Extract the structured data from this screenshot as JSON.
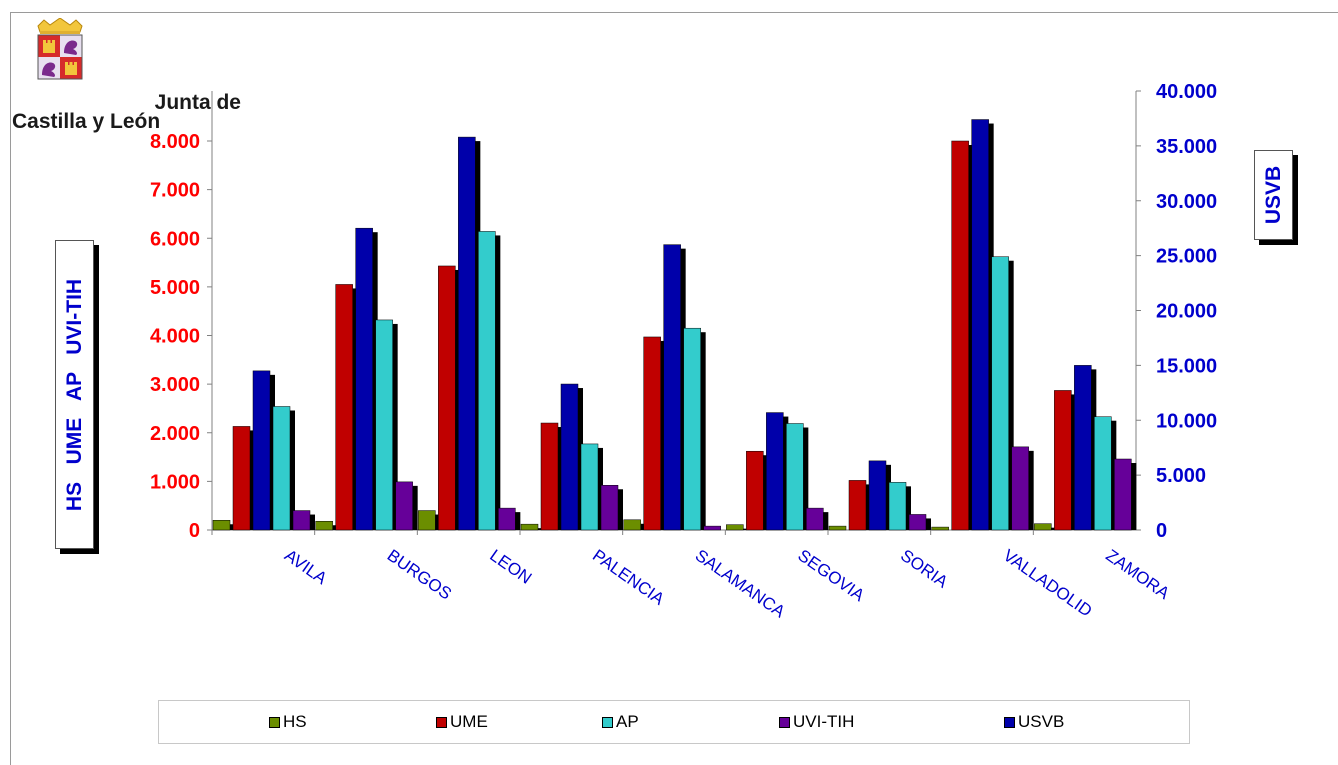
{
  "logo": {
    "line1": "Junta de",
    "line2": "Castilla y León",
    "crest_name": "castilla-y-leon-crest"
  },
  "axes": {
    "left_label": "HS   UME   AP   UVI-TIH",
    "right_label": "USVB",
    "left_color": "#ff0000",
    "right_color": "#0000cc",
    "category_color": "#0000cc"
  },
  "legend": {
    "items": [
      {
        "label": "HS",
        "color": "#6b8e00"
      },
      {
        "label": "UME",
        "color": "#c00000"
      },
      {
        "label": "AP",
        "color": "#33cccc"
      },
      {
        "label": "UVI-TIH",
        "color": "#660099"
      },
      {
        "label": "USVB",
        "color": "#0000aa"
      }
    ]
  },
  "chart_data": {
    "type": "bar",
    "categories": [
      "AVILA",
      "BURGOS",
      "LEON",
      "PALENCIA",
      "SALAMANCA",
      "SEGOVIA",
      "SORIA",
      "VALLADOLID",
      "ZAMORA"
    ],
    "left_axis": {
      "ylim": [
        0,
        8000
      ],
      "ticks": [
        0,
        1000,
        2000,
        3000,
        4000,
        5000,
        6000,
        7000,
        8000
      ],
      "tick_labels": [
        "0",
        "1.000",
        "2.000",
        "3.000",
        "4.000",
        "5.000",
        "6.000",
        "7.000",
        "8.000"
      ],
      "label": "HS   UME   AP   UVI-TIH"
    },
    "right_axis": {
      "ylim": [
        0,
        40000
      ],
      "ticks": [
        0,
        5000,
        10000,
        15000,
        20000,
        25000,
        30000,
        35000,
        40000
      ],
      "tick_labels": [
        "0",
        "5.000",
        "10.000",
        "15.000",
        "20.000",
        "25.000",
        "30.000",
        "35.000",
        "40.000"
      ],
      "label": "USVB"
    },
    "series": [
      {
        "name": "HS",
        "axis": "left",
        "color": "#6b8e00",
        "values": [
          200,
          180,
          400,
          120,
          210,
          110,
          80,
          60,
          130
        ]
      },
      {
        "name": "UME",
        "axis": "left",
        "color": "#c00000",
        "values": [
          2130,
          5050,
          5430,
          2200,
          3970,
          1620,
          1020,
          8000,
          2870
        ]
      },
      {
        "name": "USVB",
        "axis": "right",
        "color": "#0000aa",
        "values": [
          14500,
          27500,
          35800,
          13300,
          26000,
          10700,
          6300,
          37400,
          15000
        ]
      },
      {
        "name": "AP",
        "axis": "left",
        "color": "#33cccc",
        "values": [
          2540,
          4320,
          6140,
          1770,
          4150,
          2190,
          980,
          5620,
          2330
        ]
      },
      {
        "name": "UVI-TIH",
        "axis": "left",
        "color": "#660099",
        "values": [
          400,
          990,
          450,
          920,
          80,
          450,
          320,
          1710,
          1460
        ]
      }
    ],
    "legend_position": "bottom",
    "grid": false
  }
}
